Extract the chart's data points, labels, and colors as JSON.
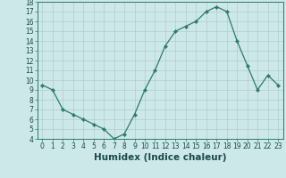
{
  "x": [
    0,
    1,
    2,
    3,
    4,
    5,
    6,
    7,
    8,
    9,
    10,
    11,
    12,
    13,
    14,
    15,
    16,
    17,
    18,
    19,
    20,
    21,
    22,
    23
  ],
  "y": [
    9.5,
    9.0,
    7.0,
    6.5,
    6.0,
    5.5,
    5.0,
    4.0,
    4.5,
    6.5,
    9.0,
    11.0,
    13.5,
    15.0,
    15.5,
    16.0,
    17.0,
    17.5,
    17.0,
    14.0,
    11.5,
    9.0,
    10.5,
    9.5
  ],
  "line_color": "#2d7a6e",
  "marker": "D",
  "marker_size": 2.2,
  "bg_color": "#cce8e8",
  "grid_color": "#b0cccc",
  "xlabel": "Humidex (Indice chaleur)",
  "ylim": [
    4,
    18
  ],
  "xlim_min": -0.5,
  "xlim_max": 23.5,
  "yticks": [
    4,
    5,
    6,
    7,
    8,
    9,
    10,
    11,
    12,
    13,
    14,
    15,
    16,
    17,
    18
  ],
  "xticks": [
    0,
    1,
    2,
    3,
    4,
    5,
    6,
    7,
    8,
    9,
    10,
    11,
    12,
    13,
    14,
    15,
    16,
    17,
    18,
    19,
    20,
    21,
    22,
    23
  ],
  "tick_label_size": 5.5,
  "xlabel_size": 7.5,
  "axis_label_color": "#1a4a4a",
  "spine_color": "#2d7a6e"
}
